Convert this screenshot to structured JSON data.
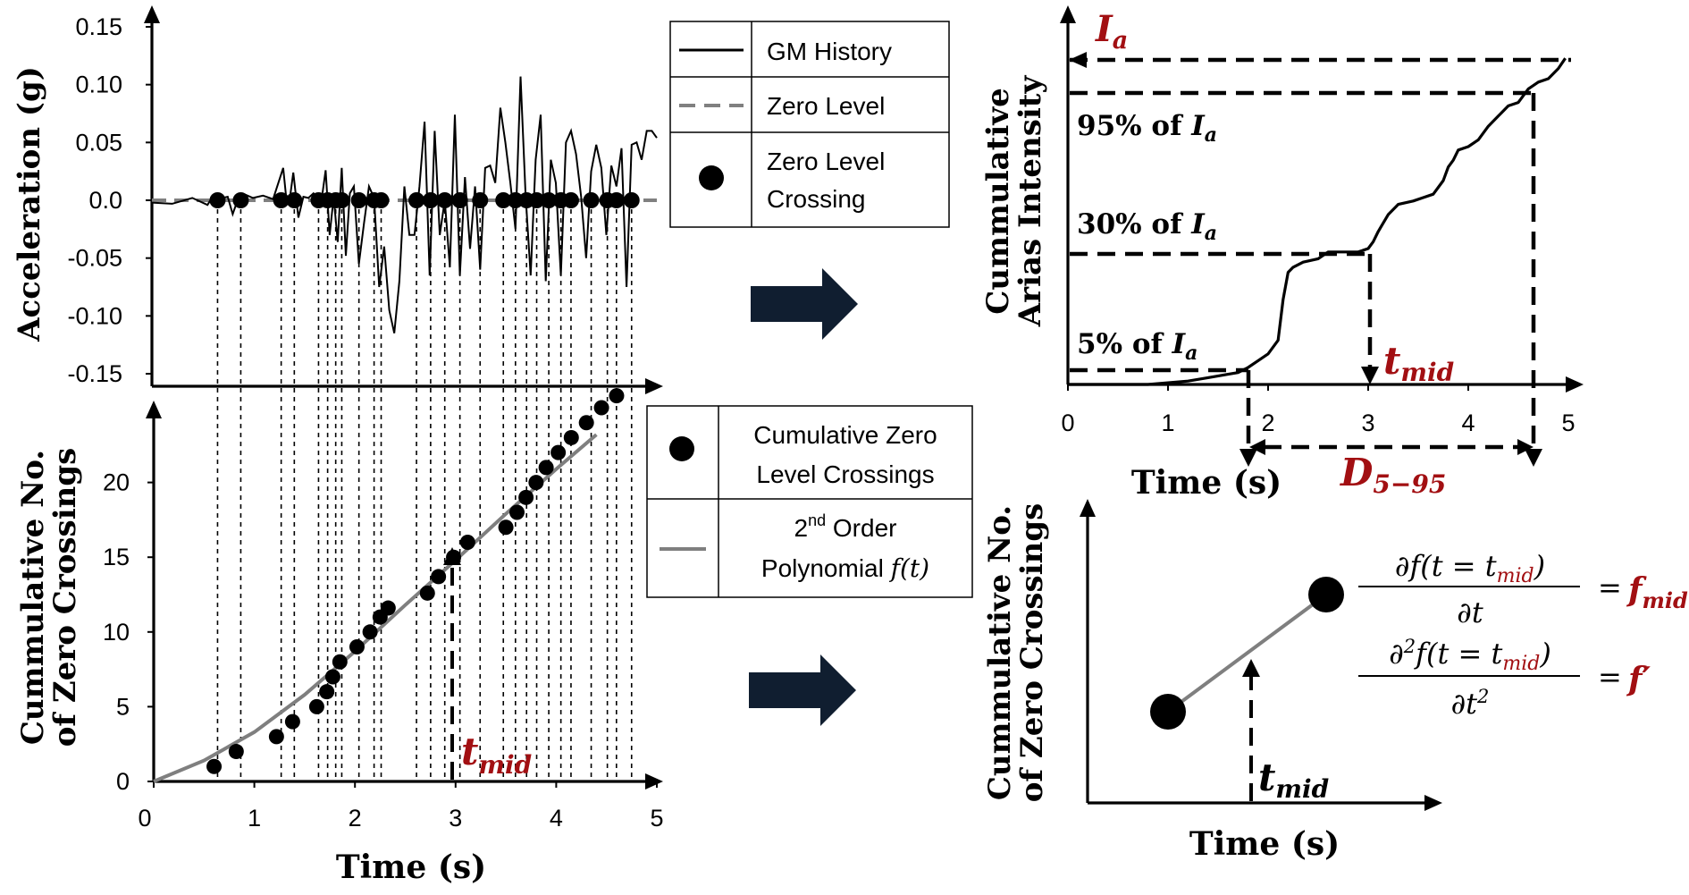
{
  "colors": {
    "accent_red": "#a20f12",
    "gm_line": "#000000",
    "zero_level": "#808080",
    "polynomial": "#7f7f7f",
    "arrow_fill": "#101e30"
  },
  "chart_data": [
    {
      "type": "line",
      "panel": "acceleration-history",
      "ylabel": "Acceleration (g)",
      "xlim": [
        0,
        5
      ],
      "ylim": [
        -0.15,
        0.15
      ],
      "y_ticks": [
        "0.15",
        "0.10",
        "0.05",
        "0.0",
        "-0.05",
        "-0.10",
        "-0.15"
      ],
      "series": [
        {
          "name": "GM History",
          "x": [
            0.0,
            0.2,
            0.4,
            0.55,
            0.6,
            0.62,
            0.66,
            0.7,
            0.75,
            0.8,
            0.86,
            0.92,
            1.0,
            1.1,
            1.2,
            1.3,
            1.33,
            1.36,
            1.4,
            1.45,
            1.5,
            1.55,
            1.6,
            1.68,
            1.72,
            1.76,
            1.8,
            1.84,
            1.88,
            1.92,
            1.96,
            2.0,
            2.05,
            2.1,
            2.15,
            2.2,
            2.25,
            2.3,
            2.35,
            2.4,
            2.45,
            2.5,
            2.55,
            2.6,
            2.65,
            2.7,
            2.75,
            2.8,
            2.85,
            2.9,
            2.95,
            3.0,
            3.05,
            3.1,
            3.15,
            3.2,
            3.25,
            3.3,
            3.35,
            3.4,
            3.45,
            3.5,
            3.55,
            3.6,
            3.65,
            3.7,
            3.75,
            3.8,
            3.85,
            3.9,
            3.95,
            4.0,
            4.05,
            4.1,
            4.15,
            4.2,
            4.25,
            4.3,
            4.35,
            4.4,
            4.45,
            4.5,
            4.55,
            4.6,
            4.65,
            4.7,
            4.75,
            4.8,
            4.85,
            4.9,
            4.95,
            5.0
          ],
          "y": [
            -0.002,
            -0.003,
            0.002,
            -0.004,
            0.003,
            0.004,
            -0.005,
            0.002,
            0.003,
            -0.012,
            0.003,
            0.005,
            0.002,
            0.004,
            0.001,
            0.028,
            0.002,
            -0.002,
            0.024,
            -0.015,
            0.003,
            0.002,
            0.006,
            0.0,
            0.026,
            -0.03,
            0.003,
            -0.036,
            0.028,
            -0.048,
            0.006,
            0.012,
            -0.055,
            -0.02,
            0.012,
            0.002,
            -0.075,
            -0.04,
            -0.095,
            -0.115,
            -0.07,
            0.012,
            -0.03,
            -0.03,
            0.012,
            0.068,
            -0.065,
            0.06,
            -0.03,
            0.0,
            -0.058,
            0.074,
            -0.065,
            0.02,
            -0.042,
            0.012,
            -0.06,
            0.028,
            0.03,
            0.015,
            0.08,
            0.05,
            0.015,
            -0.025,
            0.107,
            0.005,
            -0.065,
            0.035,
            0.074,
            -0.07,
            0.035,
            0.015,
            -0.065,
            0.05,
            0.06,
            0.04,
            0.003,
            -0.05,
            0.025,
            0.048,
            0.028,
            -0.03,
            0.03,
            0.012,
            0.045,
            -0.075,
            0.048,
            0.05,
            0.035,
            0.06,
            0.06,
            0.054
          ]
        },
        {
          "name": "Zero Level",
          "x": [
            0,
            5
          ],
          "y": [
            0,
            0
          ]
        },
        {
          "name": "Zero Level Crossing",
          "x": [
            0.65,
            0.88,
            1.28,
            1.41,
            1.65,
            1.74,
            1.82,
            1.88,
            2.05,
            2.2,
            2.27,
            2.62,
            2.76,
            2.9,
            3.05,
            3.25,
            3.48,
            3.6,
            3.71,
            3.81,
            3.93,
            4.05,
            4.15,
            4.35,
            4.51,
            4.6,
            4.75
          ],
          "y": [
            0,
            0,
            0,
            0,
            0,
            0,
            0,
            0,
            0,
            0,
            0,
            0,
            0,
            0,
            0,
            0,
            0,
            0,
            0,
            0,
            0,
            0,
            0,
            0,
            0,
            0,
            0
          ]
        }
      ]
    },
    {
      "type": "scatter",
      "panel": "cumulative-zero-crossings",
      "ylabel": "Cummulative No. of Zero Crossings",
      "xlabel": "Time (s)",
      "xlim": [
        0,
        5
      ],
      "ylim": [
        0,
        25
      ],
      "x_ticks": [
        "0",
        "1",
        "2",
        "3",
        "4",
        "5"
      ],
      "y_ticks": [
        "0",
        "5",
        "10",
        "15",
        "20"
      ],
      "series": [
        {
          "name": "Cumulative Zero Level Crossings",
          "x": [
            0.6,
            0.82,
            1.22,
            1.38,
            1.62,
            1.72,
            1.78,
            1.85,
            2.02,
            2.15,
            2.25,
            2.33,
            2.72,
            2.83,
            2.98,
            3.12,
            3.5,
            3.61,
            3.7,
            3.8,
            3.9,
            4.02,
            4.15,
            4.3,
            4.45,
            4.6
          ],
          "y": [
            1,
            2,
            3,
            4,
            5,
            6,
            7,
            8,
            9,
            10,
            11,
            11.6,
            12.6,
            13.7,
            15,
            16,
            17,
            18,
            19,
            20,
            21,
            22,
            23,
            24,
            25,
            25.8
          ]
        },
        {
          "name": "2nd Order Polynomial f(t)",
          "x": [
            0,
            0.5,
            1,
            1.5,
            2,
            2.5,
            3,
            3.5,
            4,
            4.4
          ],
          "y": [
            0,
            1.4,
            3.3,
            5.8,
            8.7,
            11.8,
            14.8,
            17.9,
            20.9,
            23.2
          ]
        }
      ],
      "annotation": "t_mid"
    },
    {
      "type": "line",
      "panel": "cumulative-arias-intensity",
      "ylabel": "Cummulative Arias Intensity",
      "xlabel": "Time (s)",
      "xlim": [
        0,
        5
      ],
      "ylim": [
        0,
        1
      ],
      "x_ticks": [
        "0",
        "1",
        "2",
        "3",
        "4",
        "5"
      ],
      "series": [
        {
          "name": "Cumulative Arias Intensity",
          "x": [
            0,
            0.8,
            1.0,
            1.2,
            1.4,
            1.6,
            1.7,
            1.8,
            1.9,
            2.0,
            2.1,
            2.15,
            2.2,
            2.25,
            2.35,
            2.5,
            2.6,
            2.75,
            2.9,
            3.0,
            3.05,
            3.1,
            3.2,
            3.3,
            3.45,
            3.55,
            3.65,
            3.75,
            3.8,
            3.85,
            3.9,
            4.0,
            4.1,
            4.2,
            4.3,
            4.4,
            4.5,
            4.6,
            4.7,
            4.8,
            4.9,
            4.97
          ],
          "y": [
            0,
            0,
            0.005,
            0.01,
            0.02,
            0.03,
            0.035,
            0.05,
            0.07,
            0.09,
            0.13,
            0.25,
            0.33,
            0.345,
            0.36,
            0.37,
            0.39,
            0.39,
            0.39,
            0.4,
            0.42,
            0.45,
            0.5,
            0.53,
            0.54,
            0.55,
            0.56,
            0.6,
            0.64,
            0.66,
            0.69,
            0.7,
            0.72,
            0.76,
            0.79,
            0.82,
            0.83,
            0.87,
            0.89,
            0.9,
            0.93,
            0.96
          ]
        }
      ],
      "levels": {
        "ia": "I_a",
        "p95": "95% of I_a",
        "p30": "30% of I_a",
        "p5": "5% of I_a"
      },
      "annotations": [
        "t_mid",
        "D_5-95"
      ]
    },
    {
      "type": "line",
      "panel": "derivative-schematic",
      "ylabel": "Cummulative No. of Zero Crossings",
      "xlabel": "Time (s)",
      "annotation": "t_mid"
    }
  ],
  "legends": {
    "top": [
      {
        "label": "GM History",
        "icon": "solid-line-icon"
      },
      {
        "label": "Zero Level",
        "icon": "dashed-line-icon"
      },
      {
        "label_lines": [
          "Zero Level",
          "Crossing"
        ],
        "icon": "dot-marker-icon"
      }
    ],
    "bottom": [
      {
        "label_lines": [
          "Cumulative Zero",
          "Level Crossings"
        ],
        "icon": "dot-marker-icon"
      },
      {
        "label_lines": [
          "2",
          "nd",
          " Order",
          "Polynomial "
        ],
        "math": "f(t)",
        "icon": "grey-line-icon"
      }
    ]
  },
  "arrows": [
    "right-arrow-icon",
    "right-arrow-icon"
  ],
  "equations": {
    "first": {
      "num": "∂f(t = t",
      "num_sub": "mid",
      "num_end": ")",
      "den": "∂t",
      "eq": "=",
      "rhs": "f",
      "rhs_sub": "mid"
    },
    "second": {
      "num_a": "∂",
      "num_sup": "2",
      "num_b": "f(t = t",
      "num_sub": "mid",
      "num_end": ")",
      "den": "∂t",
      "den_sup": "2",
      "eq": "=",
      "rhs": "f′"
    }
  },
  "labels": {
    "ylab_accel": "Acceleration (g)",
    "ylab_zc_1": "Cummulative No.",
    "ylab_zc_2": "of Zero Crossings",
    "ylab_ia_1": "Cummulative",
    "ylab_ia_2": "Arias Intensity",
    "time_s": "Time (s)",
    "t": "t",
    "mid": "mid",
    "I": "I",
    "a": "a",
    "D": "D",
    "d_sub": "5−95",
    "p95": "95% of ",
    "p30": "30% of ",
    "p5": "5% of "
  }
}
